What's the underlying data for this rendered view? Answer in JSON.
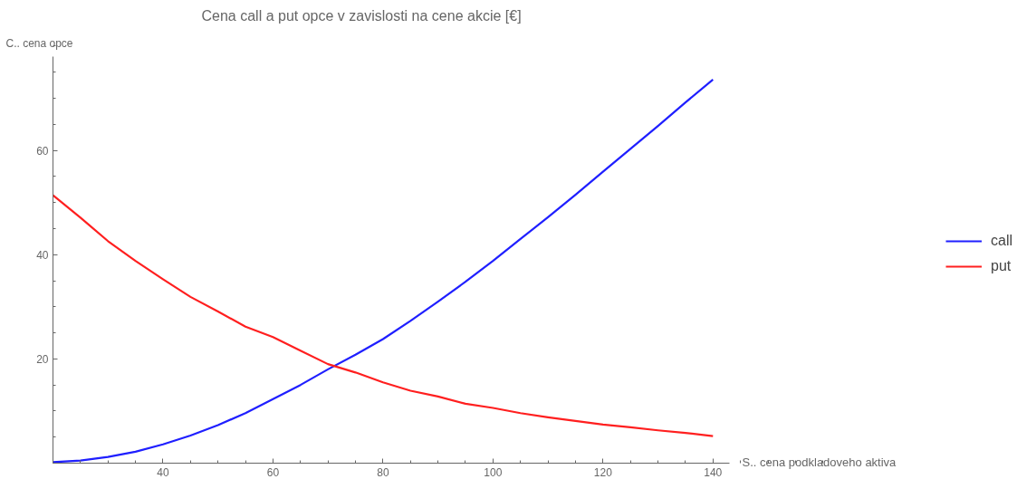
{
  "chart_data": {
    "type": "line",
    "title": "Cena call a put opce v zavislosti na cene akcie [€]",
    "xlabel": "S.. cena podkladoveho aktiva",
    "ylabel": "C.. cena opce",
    "x": [
      20,
      25,
      30,
      35,
      40,
      45,
      50,
      55,
      60,
      65,
      70,
      75,
      80,
      85,
      90,
      95,
      100,
      105,
      110,
      115,
      120,
      125,
      130,
      135,
      140
    ],
    "series": [
      {
        "name": "call",
        "color": "#1f1fff",
        "values": [
          0.2,
          0.5,
          1.2,
          2.2,
          3.6,
          5.3,
          7.3,
          9.6,
          12.3,
          15,
          18,
          20.8,
          23.8,
          27.3,
          31,
          34.8,
          38.8,
          43,
          47.2,
          51.5,
          55.9,
          60.3,
          64.7,
          69.2,
          73.6
        ]
      },
      {
        "name": "put",
        "color": "#ff1f1f",
        "values": [
          51.4,
          47.1,
          42.6,
          38.8,
          35.3,
          31.9,
          29.1,
          26.2,
          24.2,
          21.6,
          19,
          17.4,
          15.5,
          13.9,
          12.8,
          11.4,
          10.6,
          9.6,
          8.8,
          8.1,
          7.4,
          6.9,
          6.3,
          5.8,
          5.2
        ]
      }
    ],
    "xlim": [
      20,
      143
    ],
    "ylim": [
      0,
      78
    ],
    "xticks": [
      40,
      60,
      80,
      100,
      120,
      140
    ],
    "yticks": [
      20,
      40,
      60
    ],
    "grid": false,
    "legend": "right",
    "marker": "none",
    "line_style": "solid"
  }
}
